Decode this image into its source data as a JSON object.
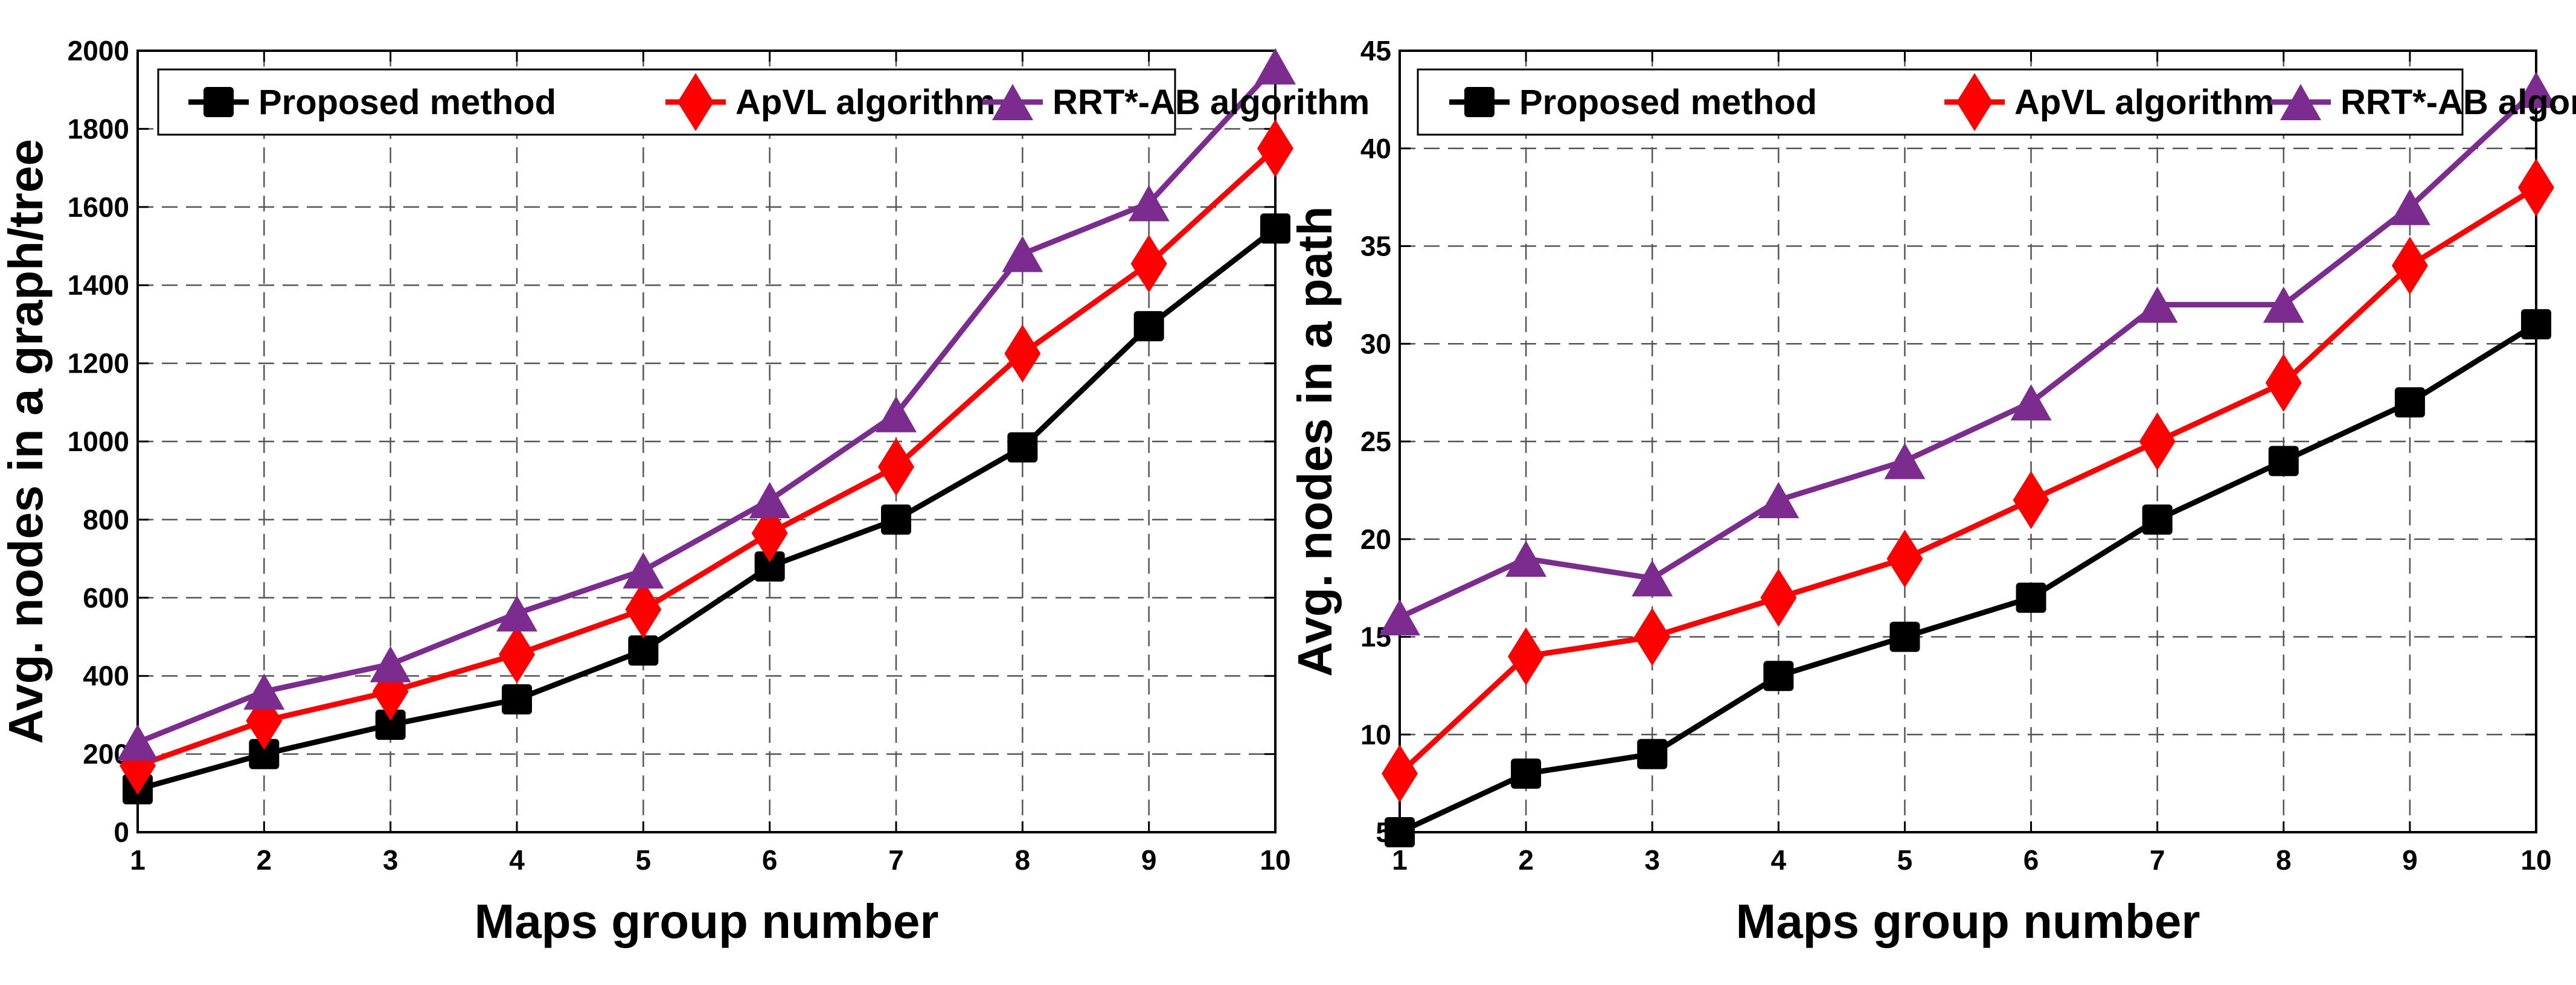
{
  "chart_data": [
    {
      "type": "line",
      "title": "",
      "xlabel": "Maps group number",
      "ylabel": "Avg. nodes in a graph/tree",
      "x": [
        1,
        2,
        3,
        4,
        5,
        6,
        7,
        8,
        9,
        10
      ],
      "xlim": [
        1,
        10
      ],
      "ylim": [
        0,
        2000
      ],
      "yticks": [
        0,
        200,
        400,
        600,
        800,
        1000,
        1200,
        1400,
        1600,
        1800,
        2000
      ],
      "grid": true,
      "legend_position": "top",
      "series": [
        {
          "name": "Proposed method",
          "color": "#000000",
          "marker": "square",
          "values": [
            110,
            200,
            275,
            340,
            465,
            680,
            800,
            985,
            1295,
            1545
          ]
        },
        {
          "name": "ApVL algorithm",
          "color": "#ff0000",
          "marker": "diamond",
          "values": [
            170,
            285,
            360,
            455,
            570,
            765,
            935,
            1225,
            1455,
            1750
          ]
        },
        {
          "name": "RRT*-AB algorithm",
          "color": "#7b2c8e",
          "marker": "triangle",
          "values": [
            230,
            360,
            430,
            560,
            670,
            850,
            1070,
            1480,
            1610,
            1960
          ]
        }
      ]
    },
    {
      "type": "line",
      "title": "",
      "xlabel": "Maps group number",
      "ylabel": "Avg. nodes in a path",
      "x": [
        1,
        2,
        3,
        4,
        5,
        6,
        7,
        8,
        9,
        10
      ],
      "xlim": [
        1,
        10
      ],
      "ylim": [
        5,
        45
      ],
      "yticks": [
        5,
        10,
        15,
        20,
        25,
        30,
        35,
        40,
        45
      ],
      "grid": true,
      "legend_position": "top",
      "series": [
        {
          "name": "Proposed method",
          "color": "#000000",
          "marker": "square",
          "values": [
            5,
            8,
            9,
            13,
            15,
            17,
            21,
            24,
            27,
            31
          ]
        },
        {
          "name": "ApVL algorithm",
          "color": "#ff0000",
          "marker": "diamond",
          "values": [
            8,
            14,
            15,
            17,
            19,
            22,
            25,
            28,
            34,
            38
          ]
        },
        {
          "name": "RRT*-AB algorithm",
          "color": "#7b2c8e",
          "marker": "triangle",
          "values": [
            16,
            19,
            18,
            22,
            24,
            27,
            32,
            32,
            37,
            43
          ]
        }
      ]
    }
  ]
}
